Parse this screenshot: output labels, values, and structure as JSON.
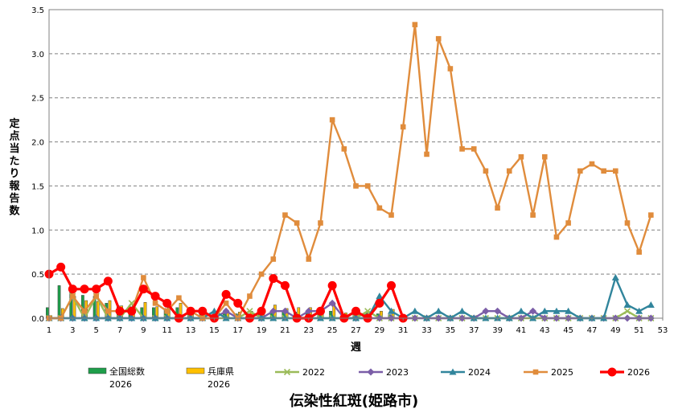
{
  "chart_data": {
    "type": "line",
    "title": "伝染性紅斑(姫路市)",
    "xlabel": "週",
    "ylabel": "定点当たり報告数",
    "xlim": [
      1,
      53
    ],
    "ylim": [
      0,
      3.5
    ],
    "x_ticks": [
      "1",
      "3",
      "5",
      "7",
      "9",
      "11",
      "13",
      "15",
      "17",
      "19",
      "21",
      "23",
      "25",
      "27",
      "29",
      "31",
      "33",
      "35",
      "37",
      "39",
      "41",
      "43",
      "45",
      "47",
      "49",
      "51",
      "53"
    ],
    "y_ticks": [
      "0.0",
      "0.5",
      "1.0",
      "1.5",
      "2.0",
      "2.5",
      "3.0",
      "3.5"
    ],
    "grid": true,
    "legend_position": "bottom",
    "bar_series": [
      {
        "name": "全国総数",
        "name_line2": "2026",
        "color": "#1e9e4a",
        "weeks": [
          1,
          2,
          3,
          4,
          5,
          6,
          7,
          8,
          9,
          10,
          11,
          12,
          13,
          14,
          15,
          16,
          17,
          18,
          19,
          20,
          21,
          22,
          23,
          24,
          25,
          26,
          27,
          28,
          29,
          30
        ],
        "values": [
          0.12,
          0.37,
          0.32,
          0.26,
          0.25,
          0.17,
          0.14,
          0.13,
          0.12,
          0.12,
          0.11,
          0.12,
          0.06,
          0.05,
          0.04,
          0.05,
          0.05,
          0.05,
          0.05,
          0.08,
          0.08,
          0.07,
          0.08,
          0.07,
          0.08,
          0.05,
          0.06,
          0.06,
          0.05,
          0.04
        ]
      },
      {
        "name": "兵庫県",
        "name_line2": "2026",
        "color": "#ffc000",
        "weeks": [
          1,
          2,
          3,
          4,
          5,
          6,
          7,
          8,
          9,
          10,
          11,
          12,
          13,
          14,
          15,
          16,
          17,
          18,
          19,
          20,
          21,
          22,
          23,
          24,
          25,
          26,
          27,
          28,
          29,
          30
        ],
        "values": [
          0.03,
          0.11,
          0.25,
          0.2,
          0.19,
          0.2,
          0.14,
          0.16,
          0.18,
          0.13,
          0.12,
          0.17,
          0.07,
          0.06,
          0.05,
          0.07,
          0.07,
          0.08,
          0.1,
          0.15,
          0.11,
          0.12,
          0.12,
          0.12,
          0.16,
          0.06,
          0.08,
          0.07,
          0.08,
          0.1
        ]
      }
    ],
    "series": [
      {
        "name": "2022",
        "color": "#9bbb59",
        "marker": "x",
        "x": [
          1,
          2,
          3,
          4,
          5,
          6,
          7,
          8,
          9,
          10,
          11,
          12,
          13,
          14,
          15,
          16,
          17,
          18,
          19,
          20,
          21,
          22,
          23,
          24,
          25,
          26,
          27,
          28,
          29,
          30,
          31,
          32,
          33,
          34,
          35,
          36,
          37,
          38,
          39,
          40,
          41,
          42,
          43,
          44,
          45,
          46,
          47,
          48,
          49,
          50,
          51,
          52
        ],
        "values": [
          0,
          0,
          0.25,
          0,
          0.25,
          0,
          0,
          0.17,
          0,
          0,
          0,
          0,
          0,
          0,
          0,
          0,
          0,
          0.08,
          0,
          0,
          0,
          0,
          0,
          0,
          0,
          0,
          0,
          0.08,
          0,
          0,
          0,
          0,
          0,
          0,
          0,
          0,
          0,
          0,
          0,
          0,
          0,
          0,
          0,
          0,
          0,
          0,
          0,
          0,
          0,
          0.08,
          0,
          0
        ]
      },
      {
        "name": "2023",
        "color": "#7b5ea7",
        "marker": "diamond",
        "x": [
          1,
          2,
          3,
          4,
          5,
          6,
          7,
          8,
          9,
          10,
          11,
          12,
          13,
          14,
          15,
          16,
          17,
          18,
          19,
          20,
          21,
          22,
          23,
          24,
          25,
          26,
          27,
          28,
          29,
          30,
          31,
          32,
          33,
          34,
          35,
          36,
          37,
          38,
          39,
          40,
          41,
          42,
          43,
          44,
          45,
          46,
          47,
          48,
          49,
          50,
          51,
          52
        ],
        "values": [
          0,
          0,
          0,
          0,
          0,
          0,
          0,
          0,
          0,
          0,
          0,
          0,
          0,
          0,
          0,
          0.08,
          0,
          0,
          0,
          0.08,
          0.08,
          0,
          0.08,
          0.08,
          0.17,
          0,
          0,
          0,
          0,
          0,
          0,
          0,
          0,
          0,
          0,
          0,
          0,
          0.08,
          0.08,
          0,
          0,
          0.08,
          0,
          0,
          0,
          0,
          0,
          0,
          0,
          0,
          0,
          0
        ]
      },
      {
        "name": "2024",
        "color": "#31859c",
        "marker": "triangle",
        "x": [
          1,
          2,
          3,
          4,
          5,
          6,
          7,
          8,
          9,
          10,
          11,
          12,
          13,
          14,
          15,
          16,
          17,
          18,
          19,
          20,
          21,
          22,
          23,
          24,
          25,
          26,
          27,
          28,
          29,
          30,
          31,
          32,
          33,
          34,
          35,
          36,
          37,
          38,
          39,
          40,
          41,
          42,
          43,
          44,
          45,
          46,
          47,
          48,
          49,
          50,
          51,
          52
        ],
        "values": [
          0,
          0,
          0,
          0,
          0,
          0,
          0,
          0,
          0,
          0,
          0,
          0,
          0,
          0,
          0.08,
          0,
          0,
          0,
          0,
          0,
          0,
          0,
          0,
          0,
          0,
          0,
          0,
          0,
          0.25,
          0.08,
          0,
          0.08,
          0,
          0.08,
          0,
          0.08,
          0,
          0,
          0,
          0,
          0.08,
          0,
          0.08,
          0.08,
          0.08,
          0,
          0,
          0,
          0.46,
          0.15,
          0.08,
          0.15
        ]
      },
      {
        "name": "2025",
        "color": "#e08c3c",
        "marker": "square",
        "x": [
          1,
          2,
          3,
          4,
          5,
          6,
          7,
          8,
          9,
          10,
          11,
          12,
          13,
          14,
          15,
          16,
          17,
          18,
          19,
          20,
          21,
          22,
          23,
          24,
          25,
          26,
          27,
          28,
          29,
          30,
          31,
          32,
          33,
          34,
          35,
          36,
          37,
          38,
          39,
          40,
          41,
          42,
          43,
          44,
          45,
          46,
          47,
          48,
          49,
          50,
          51,
          52
        ],
        "values": [
          0,
          0,
          0.25,
          0.08,
          0.25,
          0.08,
          0.08,
          0.08,
          0.46,
          0.17,
          0.08,
          0.23,
          0.08,
          0,
          0,
          0.17,
          0,
          0.25,
          0.5,
          0.67,
          1.17,
          1.08,
          0.67,
          1.08,
          2.25,
          1.92,
          1.5,
          1.5,
          1.25,
          1.17,
          2.17,
          3.33,
          1.86,
          3.17,
          2.83,
          1.92,
          1.92,
          1.67,
          1.25,
          1.67,
          1.83,
          1.17,
          1.83,
          0.92,
          1.08,
          1.67,
          1.75,
          1.67,
          1.67,
          1.08,
          0.75,
          1.17
        ]
      },
      {
        "name": "2026",
        "color": "#ff0000",
        "marker": "circle",
        "x": [
          1,
          2,
          3,
          4,
          5,
          6,
          7,
          8,
          9,
          10,
          11,
          12,
          13,
          14,
          15,
          16,
          17,
          18,
          19,
          20,
          21,
          22,
          23,
          24,
          25,
          26,
          27,
          28,
          29,
          30,
          31
        ],
        "values": [
          0.5,
          0.58,
          0.33,
          0.33,
          0.33,
          0.42,
          0.08,
          0.08,
          0.33,
          0.25,
          0.17,
          0,
          0.08,
          0.08,
          0,
          0.27,
          0.17,
          0,
          0.08,
          0.45,
          0.37,
          0,
          0,
          0.08,
          0.37,
          0,
          0.08,
          0,
          0.17,
          0.37,
          0
        ]
      }
    ]
  }
}
